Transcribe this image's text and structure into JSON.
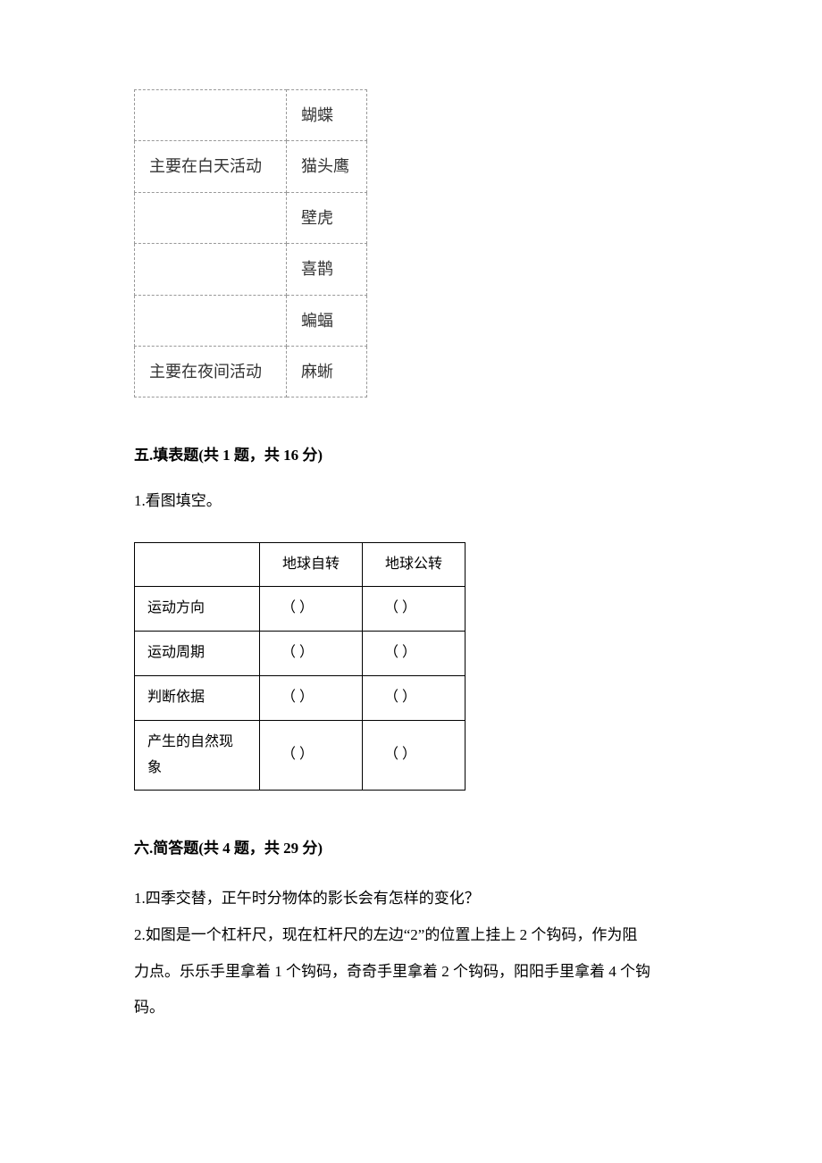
{
  "table1": {
    "rows": [
      {
        "c1": "",
        "c2": "蝴蝶"
      },
      {
        "c1": "主要在白天活动",
        "c2": "猫头鹰"
      },
      {
        "c1": "",
        "c2": "壁虎"
      },
      {
        "c1": "",
        "c2": "喜鹊"
      },
      {
        "c1": "",
        "c2": "蝙蝠"
      },
      {
        "c1": "主要在夜间活动",
        "c2": "麻蜥"
      }
    ]
  },
  "section5": {
    "title": "五.填表题(共 1 题，共 16 分)",
    "q1": "1.看图填空。"
  },
  "table2": {
    "header": {
      "c1": "",
      "c2": "地球自转",
      "c3": "地球公转"
    },
    "rows": [
      {
        "label": "运动方向",
        "v1": "（      ）",
        "v2": "（      ）"
      },
      {
        "label": "运动周期",
        "v1": "（      ）",
        "v2": "（      ）"
      },
      {
        "label": "判断依据",
        "v1": "（      ）",
        "v2": "（      ）"
      },
      {
        "label": "产生的自然现象",
        "v1": "（      ）",
        "v2": "（      ）"
      }
    ]
  },
  "section6": {
    "title": "六.简答题(共 4 题，共 29 分)",
    "q1": "1.四季交替，正午时分物体的影长会有怎样的变化？",
    "q2a": "2.如图是一个杠杆尺，现在杠杆尺的左边“2”的位置上挂上 2 个钩码，作为阻",
    "q2b": "力点。乐乐手里拿着 1 个钩码，奇奇手里拿着 2 个钩码，阳阳手里拿着 4 个钩",
    "q2c": "码。"
  }
}
